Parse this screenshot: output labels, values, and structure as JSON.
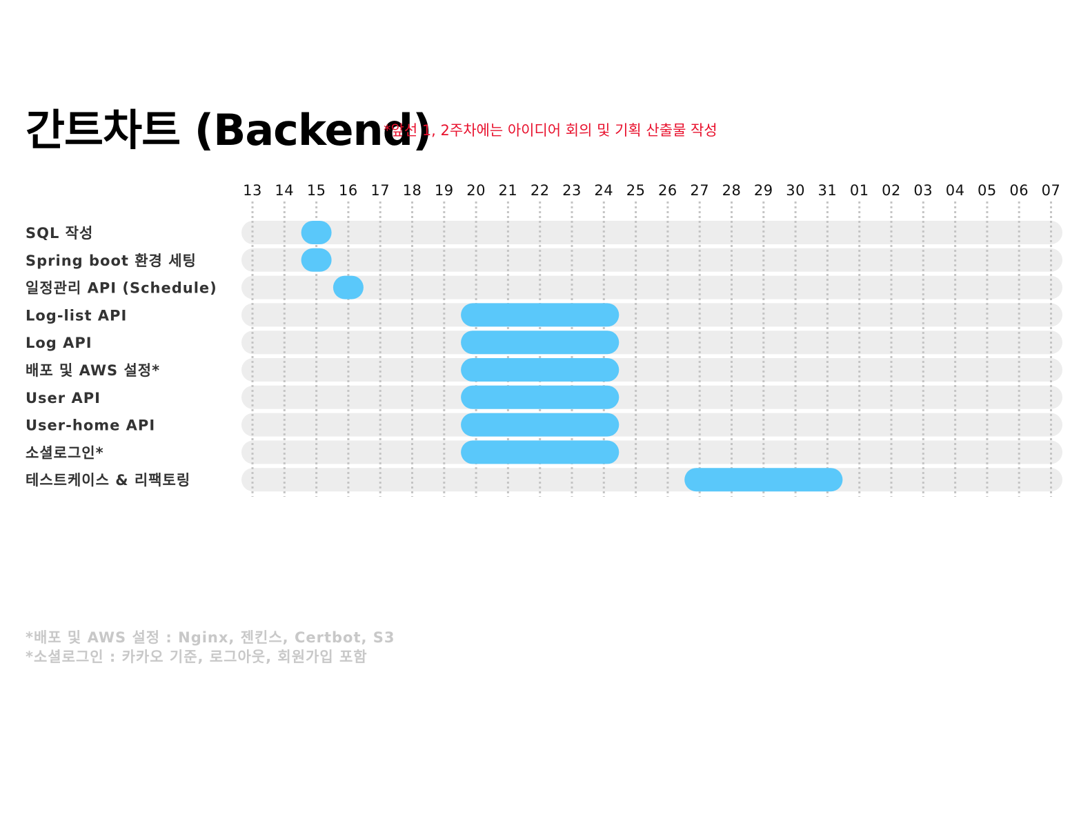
{
  "theme": {
    "title_color": "#000000",
    "subtitle_color": "#e8112d",
    "track_color": "#ededed",
    "bar_color": "#5ac8fa",
    "grid_color": "#c4c4c4",
    "label_color": "#333333",
    "footnote_color": "#c8c8c8"
  },
  "chart_data": {
    "type": "gantt",
    "title": "간트차트 (Backend)",
    "subtitle": "*앞선 1, 2주차에는 아이디어 회의 및 기획 산출물 작성",
    "x_ticks": [
      "13",
      "14",
      "15",
      "16",
      "17",
      "18",
      "19",
      "20",
      "21",
      "22",
      "23",
      "24",
      "25",
      "26",
      "27",
      "28",
      "29",
      "30",
      "31",
      "01",
      "02",
      "03",
      "04",
      "05",
      "06",
      "07"
    ],
    "grid": true,
    "tasks": [
      {
        "label": "SQL 작성",
        "start": "15",
        "end": "15"
      },
      {
        "label": "Spring boot 환경 세팅",
        "start": "15",
        "end": "15"
      },
      {
        "label": "일정관리 API (Schedule)",
        "start": "16",
        "end": "16"
      },
      {
        "label": "Log-list API",
        "start": "20",
        "end": "24"
      },
      {
        "label": "Log API",
        "start": "20",
        "end": "24"
      },
      {
        "label": "배포 및 AWS 설정*",
        "start": "20",
        "end": "24"
      },
      {
        "label": "User API",
        "start": "20",
        "end": "24"
      },
      {
        "label": "User-home API",
        "start": "20",
        "end": "24"
      },
      {
        "label": "소셜로그인*",
        "start": "20",
        "end": "24"
      },
      {
        "label": "테스트케이스 & 리팩토링",
        "start": "27",
        "end": "31"
      }
    ]
  },
  "footnotes": [
    "*배포 및 AWS 설정 : Nginx, 젠킨스, Certbot, S3",
    "*소셜로그인 : 카카오 기준, 로그아웃, 회원가입 포함"
  ]
}
